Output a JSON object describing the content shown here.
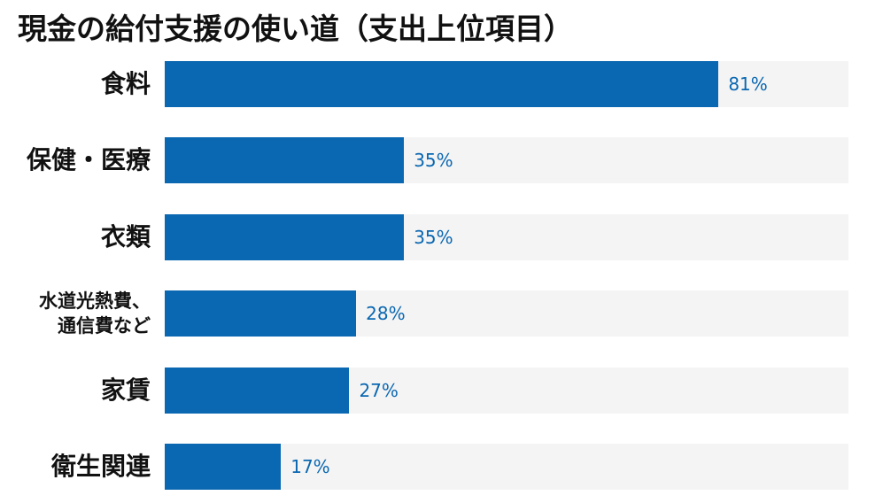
{
  "chart_data": {
    "type": "bar",
    "orientation": "horizontal",
    "title": "現金の給付支援の使い道（支出上位項目）",
    "categories": [
      "食料",
      "保健・医療",
      "衣類",
      "水道光熱費、\n通信費など",
      "家賃",
      "衛生関連"
    ],
    "values": [
      81,
      35,
      35,
      28,
      27,
      17
    ],
    "value_labels": [
      "81%",
      "35%",
      "35%",
      "28%",
      "27%",
      "17%"
    ],
    "color": "#0a67b1",
    "xlim": [
      0,
      100
    ]
  }
}
